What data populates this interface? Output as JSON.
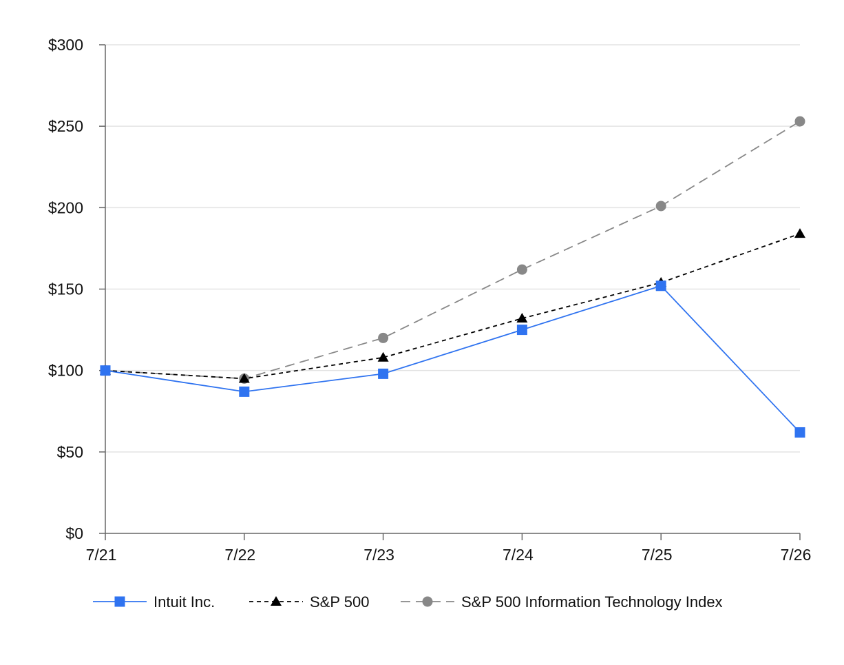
{
  "chart_data": {
    "type": "line",
    "title": "",
    "xlabel": "",
    "ylabel": "",
    "categories": [
      "7/21",
      "7/22",
      "7/23",
      "7/24",
      "7/25",
      "7/26"
    ],
    "ylim": [
      0,
      300
    ],
    "y_ticks": [
      0,
      50,
      100,
      150,
      200,
      250,
      300
    ],
    "y_tick_labels": [
      "$0",
      "$50",
      "$100",
      "$150",
      "$200",
      "$250",
      "$300"
    ],
    "grid": true,
    "legend_position": "bottom",
    "series": [
      {
        "name": "Intuit Inc.",
        "values": [
          100,
          87,
          98,
          125,
          152,
          62
        ],
        "color": "#2f73f0",
        "marker": "square",
        "line_style": "solid"
      },
      {
        "name": "S&P 500",
        "values": [
          100,
          95,
          108,
          132,
          154,
          184
        ],
        "color": "#000000",
        "marker": "triangle",
        "line_style": "dashed"
      },
      {
        "name": "S&P 500 Information Technology Index",
        "values": [
          100,
          95,
          120,
          162,
          201,
          253
        ],
        "color": "#888888",
        "marker": "circle",
        "line_style": "long-dashed"
      }
    ]
  }
}
